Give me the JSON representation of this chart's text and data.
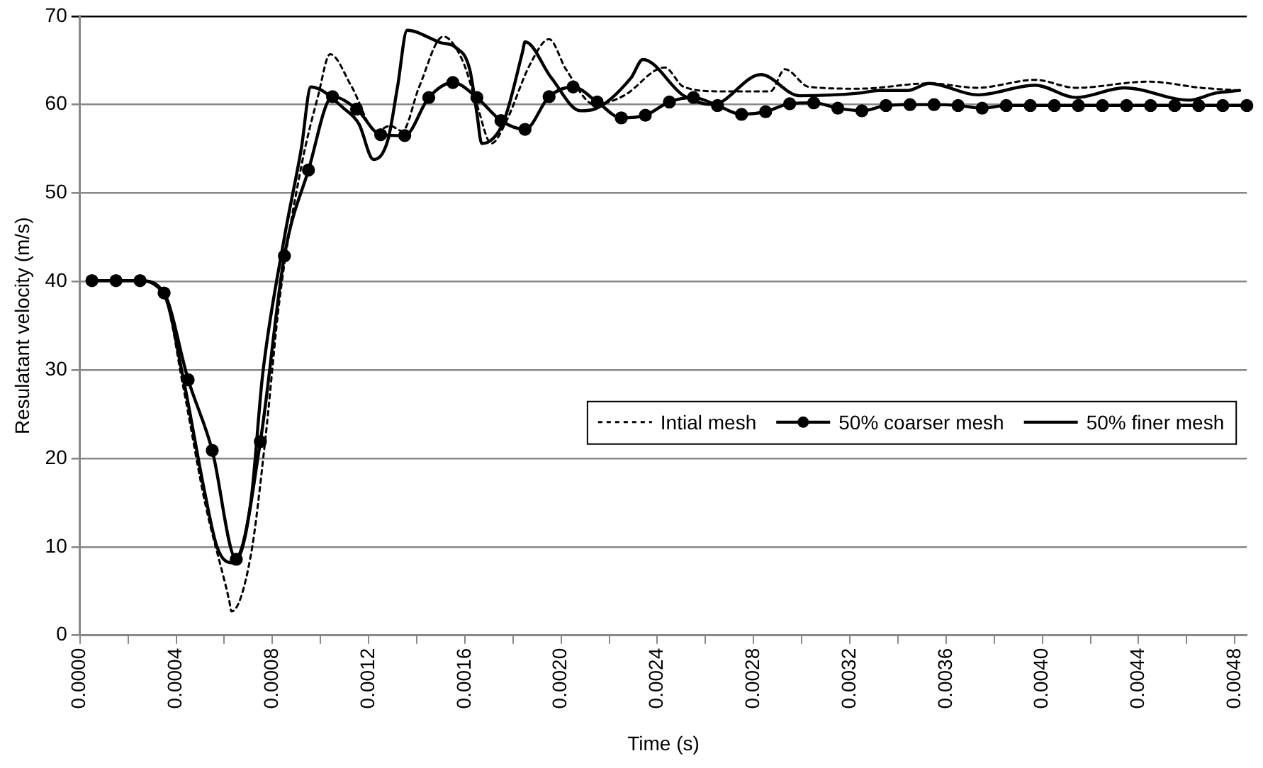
{
  "chart_data": {
    "type": "line",
    "xlabel": "Time (s)",
    "ylabel": "Resulatant velocity (m/s)",
    "xlim": [
      0,
      0.00485
    ],
    "ylim": [
      0,
      70
    ],
    "xticks": [
      {
        "value": 0,
        "label": "0.0000"
      },
      {
        "value": 0.0002,
        "label": null
      },
      {
        "value": 0.0004,
        "label": "0.0004"
      },
      {
        "value": 0.0006,
        "label": null
      },
      {
        "value": 0.0008,
        "label": "0.0008"
      },
      {
        "value": 0.001,
        "label": null
      },
      {
        "value": 0.0012,
        "label": "0.0012"
      },
      {
        "value": 0.0014,
        "label": null
      },
      {
        "value": 0.0016,
        "label": "0.0016"
      },
      {
        "value": 0.0018,
        "label": null
      },
      {
        "value": 0.002,
        "label": "0.0020"
      },
      {
        "value": 0.0022,
        "label": null
      },
      {
        "value": 0.0024,
        "label": "0.0024"
      },
      {
        "value": 0.0026,
        "label": null
      },
      {
        "value": 0.0028,
        "label": "0.0028"
      },
      {
        "value": 0.003,
        "label": null
      },
      {
        "value": 0.0032,
        "label": "0.0032"
      },
      {
        "value": 0.0034,
        "label": null
      },
      {
        "value": 0.0036,
        "label": "0.0036"
      },
      {
        "value": 0.0038,
        "label": null
      },
      {
        "value": 0.004,
        "label": "0.0040"
      },
      {
        "value": 0.0042,
        "label": null
      },
      {
        "value": 0.0044,
        "label": "0.0044"
      },
      {
        "value": 0.0046,
        "label": null
      },
      {
        "value": 0.0048,
        "label": "0.0048"
      }
    ],
    "yticks": [
      0,
      10,
      20,
      30,
      40,
      50,
      60,
      70
    ],
    "grid": "y",
    "legend": "bottom right",
    "series": [
      {
        "name": "Intial mesh",
        "color": "#000000",
        "line_style": "dotted",
        "marker": "none",
        "x": [
          5e-05,
          0.00024,
          0.00035,
          0.00043,
          0.00052,
          0.00062,
          0.00063,
          0.00071,
          0.00077,
          0.00083,
          0.00092,
          0.00099,
          0.00104,
          0.00113,
          0.00123,
          0.00129,
          0.00134,
          0.00141,
          0.00151,
          0.00159,
          0.00165,
          0.00171,
          0.00177,
          0.00187,
          0.00195,
          0.00202,
          0.00214,
          0.00226,
          0.00243,
          0.00251,
          0.00266,
          0.00287,
          0.00293,
          0.00303,
          0.00324,
          0.00353,
          0.00373,
          0.00397,
          0.00414,
          0.00444,
          0.00466,
          0.00482
        ],
        "values": [
          40.1,
          40.1,
          38.5,
          28,
          15,
          4,
          2.7,
          9,
          22,
          38,
          53,
          61,
          65.7,
          62,
          57,
          57.6,
          57,
          62,
          67.7,
          65,
          60,
          55.6,
          58,
          64.5,
          67.4,
          64,
          60,
          61,
          64.2,
          62,
          61.5,
          61.5,
          64,
          62,
          61.8,
          62.4,
          61.9,
          62.8,
          61.9,
          62.6,
          61.9,
          61.6
        ]
      },
      {
        "name": "50% coarser mesh",
        "color": "#000000",
        "line_style": "solid",
        "marker": "circle",
        "x": [
          5e-05,
          0.00015,
          0.00025,
          0.00035,
          0.00045,
          0.00055,
          0.00065,
          0.00075,
          0.00085,
          0.00095,
          0.00105,
          0.00115,
          0.00125,
          0.00135,
          0.00145,
          0.00155,
          0.00165,
          0.00175,
          0.00185,
          0.00195,
          0.00205,
          0.00215,
          0.00225,
          0.00235,
          0.00245,
          0.00255,
          0.00265,
          0.00275,
          0.00285,
          0.00295,
          0.00305,
          0.00315,
          0.00325,
          0.00335,
          0.00345,
          0.00355,
          0.00365,
          0.00375,
          0.00385,
          0.00395,
          0.00405,
          0.00415,
          0.00425,
          0.00435,
          0.00445,
          0.00455,
          0.00465,
          0.00475,
          0.00485
        ],
        "values": [
          40.1,
          40.1,
          40.1,
          38.7,
          28.9,
          20.9,
          8.6,
          21.9,
          42.9,
          52.6,
          60.9,
          59.5,
          56.6,
          56.5,
          60.8,
          62.5,
          60.8,
          58.2,
          57.2,
          60.9,
          62.0,
          60.3,
          58.5,
          58.8,
          60.3,
          60.8,
          59.9,
          58.9,
          59.2,
          60.1,
          60.2,
          59.6,
          59.3,
          59.9,
          60.0,
          60.0,
          59.9,
          59.6,
          59.9,
          59.9,
          59.9,
          59.9,
          59.9,
          59.9,
          59.9,
          59.9,
          59.9,
          59.9,
          59.9
        ]
      },
      {
        "name": "50% finer mesh",
        "color": "#000000",
        "line_style": "solid",
        "marker": "none",
        "x": [
          5e-05,
          0.00024,
          0.00035,
          0.00043,
          0.00052,
          0.00057,
          0.00063,
          0.00071,
          0.00076,
          0.00085,
          0.00092,
          0.00096,
          0.0011,
          0.00116,
          0.00122,
          0.00128,
          0.00132,
          0.00136,
          0.0015,
          0.00156,
          0.00162,
          0.00165,
          0.00167,
          0.00176,
          0.00184,
          0.00185,
          0.00196,
          0.00208,
          0.00214,
          0.00229,
          0.00234,
          0.00251,
          0.00263,
          0.00283,
          0.00299,
          0.00324,
          0.00332,
          0.00344,
          0.00353,
          0.00373,
          0.00397,
          0.00414,
          0.00434,
          0.00461,
          0.00472,
          0.00482
        ],
        "values": [
          40.1,
          40.1,
          38.5,
          29,
          16,
          10,
          8.2,
          15,
          29.6,
          45,
          55,
          62,
          59.5,
          57.8,
          53.8,
          56,
          62,
          68.4,
          67,
          66.5,
          64,
          59,
          55.6,
          58,
          66,
          67.1,
          63,
          59.3,
          59.5,
          63,
          65.1,
          61,
          60,
          63.4,
          61,
          61.3,
          61.6,
          61.6,
          62.4,
          61.1,
          62.2,
          60.8,
          61.9,
          60.5,
          61.3,
          61.6
        ]
      }
    ]
  }
}
